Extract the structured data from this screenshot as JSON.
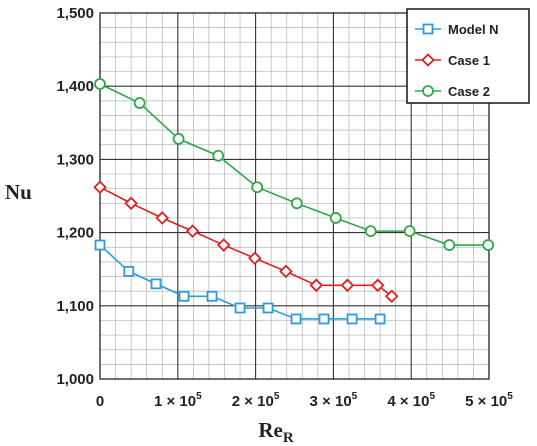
{
  "chart_data": {
    "type": "line",
    "xlabel": "Re",
    "xlabel_sub": "R",
    "ylabel": "Nu",
    "xlim": [
      0,
      500000
    ],
    "ylim": [
      1000,
      1500
    ],
    "grid": true,
    "legend_position": "top-right",
    "x_ticks": [
      {
        "value": 0,
        "mant": "0",
        "exp": ""
      },
      {
        "value": 100000,
        "mant": "1 × 10",
        "exp": "5"
      },
      {
        "value": 200000,
        "mant": "2 × 10",
        "exp": "5"
      },
      {
        "value": 300000,
        "mant": "3 × 10",
        "exp": "5"
      },
      {
        "value": 400000,
        "mant": "4 × 10",
        "exp": "5"
      },
      {
        "value": 500000,
        "mant": "5 × 10",
        "exp": "5"
      }
    ],
    "y_ticks": [
      {
        "value": 1000,
        "label": "1,000"
      },
      {
        "value": 1100,
        "label": "1,100"
      },
      {
        "value": 1200,
        "label": "1,200"
      },
      {
        "value": 1300,
        "label": "1,300"
      },
      {
        "value": 1400,
        "label": "1,400"
      },
      {
        "value": 1500,
        "label": "1,500"
      }
    ],
    "series": [
      {
        "name": "Model N",
        "color": "#2b9be0",
        "marker": "square",
        "x": [
          0,
          37000,
          72000,
          108000,
          144000,
          180000,
          216000,
          252000,
          288000,
          324000,
          360000
        ],
        "y": [
          1183,
          1147,
          1130,
          1113,
          1113,
          1097,
          1097,
          1082,
          1082,
          1082,
          1082
        ]
      },
      {
        "name": "Case 1",
        "color": "#e02020",
        "marker": "diamond",
        "x": [
          0,
          40000,
          80000,
          119000,
          159000,
          199000,
          239000,
          278000,
          318000,
          357000,
          375000
        ],
        "y": [
          1262,
          1240,
          1220,
          1202,
          1183,
          1165,
          1147,
          1128,
          1128,
          1128,
          1113
        ]
      },
      {
        "name": "Case 2",
        "color": "#2ea84a",
        "marker": "circle",
        "x": [
          0,
          51000,
          101000,
          152000,
          202000,
          253000,
          303000,
          348000,
          398000,
          449000,
          499000
        ],
        "y": [
          1403,
          1377,
          1328,
          1305,
          1262,
          1240,
          1220,
          1202,
          1202,
          1183,
          1183
        ]
      }
    ]
  }
}
